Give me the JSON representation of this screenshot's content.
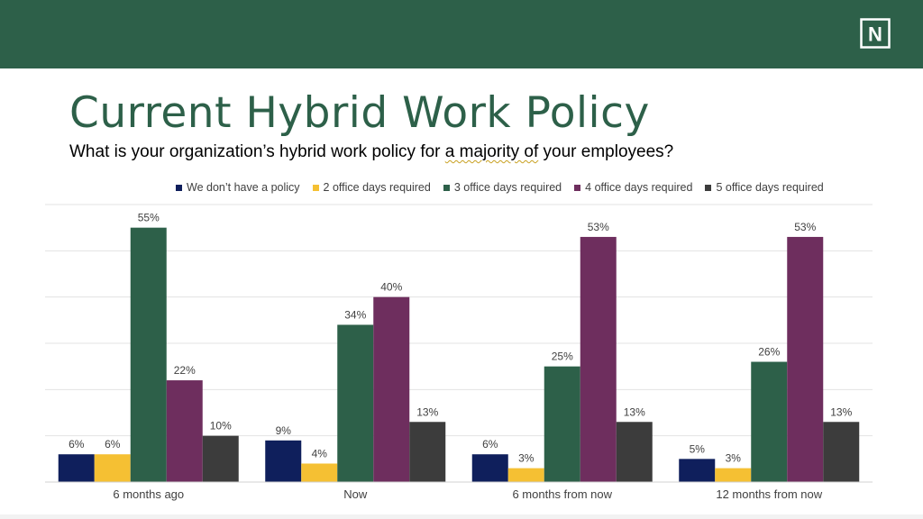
{
  "slide": {
    "title": "Current Hybrid Work Policy",
    "subtitle_pre": "What is your organization’s hybrid work policy for ",
    "subtitle_mark": "a majority of",
    "subtitle_post": " your employees?",
    "brand_color": "#2d6049",
    "logo_letter": "N"
  },
  "chart_data": {
    "type": "bar",
    "title": "",
    "xlabel": "",
    "ylabel": "",
    "ylim": [
      0,
      60
    ],
    "grid": true,
    "legend_position": "top",
    "value_suffix": "%",
    "categories": [
      "6 months ago",
      "Now",
      "6 months from now",
      "12 months from now"
    ],
    "series": [
      {
        "name": "We don’t have a policy",
        "color": "#0f1f5c",
        "values": [
          6,
          9,
          6,
          5
        ]
      },
      {
        "name": "2 office days required",
        "color": "#f5c033",
        "values": [
          6,
          4,
          3,
          3
        ]
      },
      {
        "name": "3 office days required",
        "color": "#2d6049",
        "values": [
          55,
          34,
          25,
          26
        ]
      },
      {
        "name": "4 office days required",
        "color": "#6e2e5e",
        "values": [
          22,
          40,
          53,
          53
        ]
      },
      {
        "name": "5 office days required",
        "color": "#3c3c3c",
        "values": [
          10,
          13,
          13,
          13
        ]
      }
    ]
  }
}
